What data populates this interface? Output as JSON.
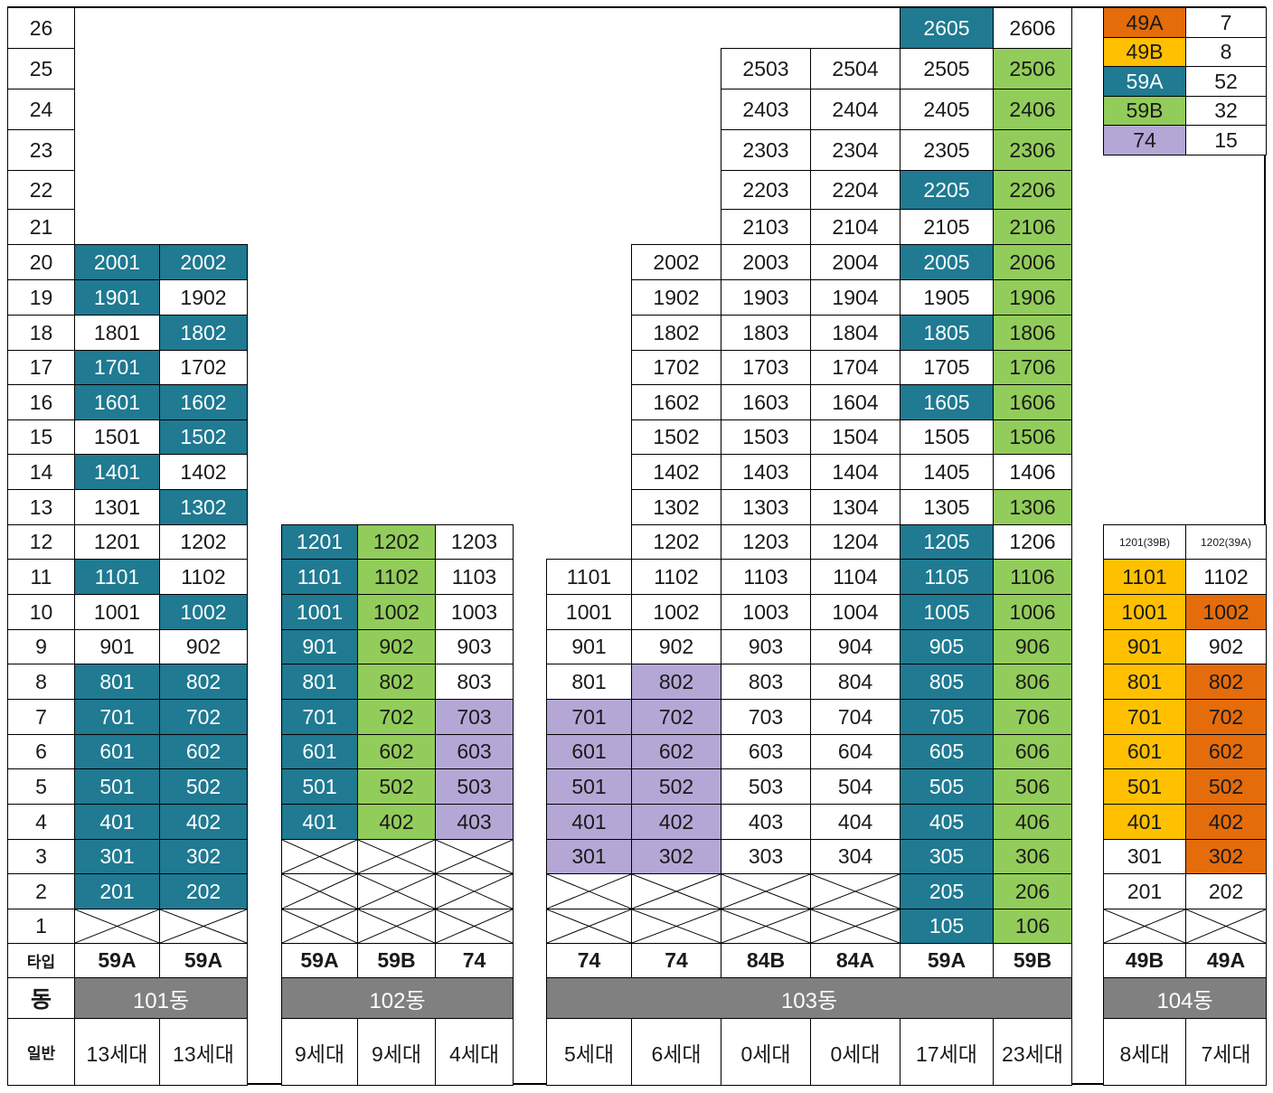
{
  "floors": [
    "1",
    "2",
    "3",
    "4",
    "5",
    "6",
    "7",
    "8",
    "9",
    "10",
    "11",
    "12",
    "13",
    "14",
    "15",
    "16",
    "17",
    "18",
    "19",
    "20",
    "21",
    "22",
    "23",
    "24",
    "25",
    "26"
  ],
  "row_labels": {
    "type": "타입",
    "dong": "동",
    "general": "일반"
  },
  "colors": {
    "59A": "#1f7a92",
    "59B": "#92cc5a",
    "74": "#b4a7d6",
    "49B": "#ffc000",
    "49A": "#e46c0a",
    "none": "#ffffff"
  },
  "legend": [
    {
      "type": "49A",
      "count": "7"
    },
    {
      "type": "49B",
      "count": "8"
    },
    {
      "type": "59A",
      "count": "52"
    },
    {
      "type": "59B",
      "count": "32"
    },
    {
      "type": "74",
      "count": "15"
    }
  ],
  "buildings": [
    {
      "name": "101동",
      "columns": [
        {
          "type": "59A",
          "households": "13세대",
          "top_floor": 20,
          "units": {
            "1": "X",
            "2": "201",
            "3": "301",
            "4": "401",
            "5": "501",
            "6": "601",
            "7": "701",
            "8": "801",
            "9": "901",
            "10": "1001",
            "11": "1101",
            "12": "1201",
            "13": "1301",
            "14": "1401",
            "15": "1501",
            "16": "1601",
            "17": "1701",
            "18": "1801",
            "19": "1901",
            "20": "2001"
          },
          "colored": [
            "2",
            "3",
            "4",
            "5",
            "6",
            "7",
            "8",
            "11",
            "14",
            "16",
            "17",
            "19",
            "20"
          ]
        },
        {
          "type": "59A",
          "households": "13세대",
          "top_floor": 20,
          "units": {
            "1": "X",
            "2": "202",
            "3": "302",
            "4": "402",
            "5": "502",
            "6": "602",
            "7": "702",
            "8": "802",
            "9": "902",
            "10": "1002",
            "11": "1102",
            "12": "1202",
            "13": "1302",
            "14": "1402",
            "15": "1502",
            "16": "1602",
            "17": "1702",
            "18": "1802",
            "19": "1902",
            "20": "2002"
          },
          "colored": [
            "2",
            "3",
            "4",
            "5",
            "6",
            "7",
            "8",
            "10",
            "13",
            "15",
            "16",
            "18",
            "20"
          ]
        }
      ]
    },
    {
      "name": "102동",
      "columns": [
        {
          "type": "59A",
          "households": "9세대",
          "top_floor": 12,
          "units": {
            "1": "X",
            "2": "X",
            "3": "X",
            "4": "401",
            "5": "501",
            "6": "601",
            "7": "701",
            "8": "801",
            "9": "901",
            "10": "1001",
            "11": "1101",
            "12": "1201"
          },
          "colored": [
            "4",
            "5",
            "6",
            "7",
            "8",
            "9",
            "10",
            "11",
            "12"
          ]
        },
        {
          "type": "59B",
          "households": "9세대",
          "top_floor": 12,
          "units": {
            "1": "X",
            "2": "X",
            "3": "X",
            "4": "402",
            "5": "502",
            "6": "602",
            "7": "702",
            "8": "802",
            "9": "902",
            "10": "1002",
            "11": "1102",
            "12": "1202"
          },
          "colored": [
            "4",
            "5",
            "6",
            "7",
            "8",
            "9",
            "10",
            "11",
            "12"
          ]
        },
        {
          "type": "74",
          "households": "4세대",
          "top_floor": 12,
          "units": {
            "1": "X",
            "2": "X",
            "3": "X",
            "4": "403",
            "5": "503",
            "6": "603",
            "7": "703",
            "8": "803",
            "9": "903",
            "10": "1003",
            "11": "1103",
            "12": "1203"
          },
          "colored": [
            "4",
            "5",
            "6",
            "7"
          ]
        }
      ]
    },
    {
      "name": "103동",
      "columns": [
        {
          "type": "74",
          "households": "5세대",
          "top_floor": 11,
          "units": {
            "1": "X",
            "2": "X",
            "3": "301",
            "4": "401",
            "5": "501",
            "6": "601",
            "7": "701",
            "8": "801",
            "9": "901",
            "10": "1001",
            "11": "1101"
          },
          "colored": [
            "3",
            "4",
            "5",
            "6",
            "7"
          ]
        },
        {
          "type": "74",
          "households": "6세대",
          "top_floor": 20,
          "units": {
            "1": "X",
            "2": "X",
            "3": "302",
            "4": "402",
            "5": "502",
            "6": "602",
            "7": "702",
            "8": "802",
            "9": "902",
            "10": "1002",
            "11": "1102",
            "12": "1202",
            "13": "1302",
            "14": "1402",
            "15": "1502",
            "16": "1602",
            "17": "1702",
            "18": "1802",
            "19": "1902",
            "20": "2002"
          },
          "colored": [
            "3",
            "4",
            "5",
            "6",
            "7",
            "8"
          ]
        },
        {
          "type": "84B",
          "households": "0세대",
          "top_floor": 25,
          "units": {
            "1": "X",
            "2": "X",
            "3": "303",
            "4": "403",
            "5": "503",
            "6": "603",
            "7": "703",
            "8": "803",
            "9": "903",
            "10": "1003",
            "11": "1103",
            "12": "1203",
            "13": "1303",
            "14": "1403",
            "15": "1503",
            "16": "1603",
            "17": "1703",
            "18": "1803",
            "19": "1903",
            "20": "2003",
            "21": "2103",
            "22": "2203",
            "23": "2303",
            "24": "2403",
            "25": "2503"
          },
          "colored": []
        },
        {
          "type": "84A",
          "households": "0세대",
          "top_floor": 25,
          "units": {
            "1": "X",
            "2": "X",
            "3": "304",
            "4": "404",
            "5": "504",
            "6": "604",
            "7": "704",
            "8": "804",
            "9": "904",
            "10": "1004",
            "11": "1104",
            "12": "1204",
            "13": "1304",
            "14": "1404",
            "15": "1504",
            "16": "1604",
            "17": "1704",
            "18": "1804",
            "19": "1904",
            "20": "2004",
            "21": "2104",
            "22": "2204",
            "23": "2304",
            "24": "2404",
            "25": "2504"
          },
          "colored": []
        },
        {
          "type": "59A",
          "households": "17세대",
          "top_floor": 26,
          "units": {
            "1": "105",
            "2": "205",
            "3": "305",
            "4": "405",
            "5": "505",
            "6": "605",
            "7": "705",
            "8": "805",
            "9": "905",
            "10": "1005",
            "11": "1105",
            "12": "1205",
            "13": "1305",
            "14": "1405",
            "15": "1505",
            "16": "1605",
            "17": "1705",
            "18": "1805",
            "19": "1905",
            "20": "2005",
            "21": "2105",
            "22": "2205",
            "23": "2305",
            "24": "2405",
            "25": "2505",
            "26": "2605"
          },
          "colored": [
            "1",
            "2",
            "3",
            "4",
            "5",
            "6",
            "7",
            "8",
            "9",
            "10",
            "11",
            "12",
            "16",
            "18",
            "20",
            "22",
            "26"
          ]
        },
        {
          "type": "59B",
          "households": "23세대",
          "top_floor": 26,
          "units": {
            "1": "106",
            "2": "206",
            "3": "306",
            "4": "406",
            "5": "506",
            "6": "606",
            "7": "706",
            "8": "806",
            "9": "906",
            "10": "1006",
            "11": "1106",
            "12": "1206",
            "13": "1306",
            "14": "1406",
            "15": "1506",
            "16": "1606",
            "17": "1706",
            "18": "1806",
            "19": "1906",
            "20": "2006",
            "21": "2106",
            "22": "2206",
            "23": "2306",
            "24": "2406",
            "25": "2506",
            "26": "2606"
          },
          "colored": [
            "1",
            "2",
            "3",
            "4",
            "5",
            "6",
            "7",
            "8",
            "9",
            "10",
            "11",
            "13",
            "15",
            "16",
            "17",
            "18",
            "19",
            "20",
            "21",
            "22",
            "23",
            "24",
            "25"
          ]
        }
      ]
    },
    {
      "name": "104동",
      "columns": [
        {
          "type": "49B",
          "households": "8세대",
          "top_floor": 12,
          "units": {
            "1": "X",
            "2": "201",
            "3": "301",
            "4": "401",
            "5": "501",
            "6": "601",
            "7": "701",
            "8": "801",
            "9": "901",
            "10": "1001",
            "11": "1101",
            "12": "1201(39B)"
          },
          "colored": [
            "4",
            "5",
            "6",
            "7",
            "8",
            "9",
            "10",
            "11"
          ]
        },
        {
          "type": "49A",
          "households": "7세대",
          "top_floor": 12,
          "units": {
            "1": "X",
            "2": "202",
            "3": "302",
            "4": "402",
            "5": "502",
            "6": "602",
            "7": "702",
            "8": "802",
            "9": "902",
            "10": "1002",
            "11": "1102",
            "12": "1202(39A)"
          },
          "colored": [
            "3",
            "4",
            "5",
            "6",
            "7",
            "8",
            "10"
          ]
        }
      ]
    }
  ]
}
